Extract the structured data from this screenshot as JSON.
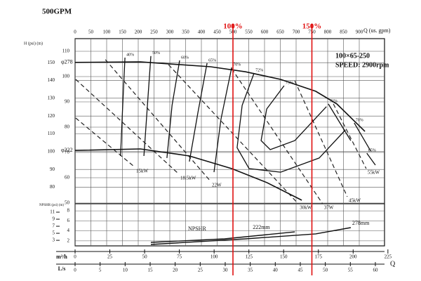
{
  "header": "500GPM",
  "chart_data": {
    "type": "pump-curve",
    "model": "100×65-250",
    "speed": "SPEED: 2900rpm",
    "x_label": "Q (us. gpm)",
    "x_bottom_label": "Q",
    "xlim": [
      0,
      1000
    ],
    "xticks": [
      0,
      50,
      100,
      150,
      200,
      250,
      300,
      350,
      400,
      450,
      500,
      550,
      600,
      650,
      700,
      750,
      800,
      850,
      900
    ],
    "x2_label": "m³/h",
    "x2lim": [
      0,
      227.1
    ],
    "x2ticks": [
      0,
      25,
      50,
      75,
      100,
      125,
      150,
      175,
      200,
      225
    ],
    "x3_label": "L/s",
    "x3lim": [
      0,
      63.09
    ],
    "x3ticks": [
      0,
      5,
      10,
      15,
      20,
      25,
      30,
      35,
      40,
      45,
      50,
      55,
      60
    ],
    "y_label": "H (psi) (m)",
    "ylim": [
      50,
      110
    ],
    "yticks": [
      50,
      60,
      70,
      80,
      90,
      100,
      110
    ],
    "y2lim": [
      71.1,
      156.4
    ],
    "y2ticks": [
      80,
      90,
      100,
      110,
      120,
      130,
      140,
      150
    ],
    "npsh_label": "NPSHR (psi) (m)",
    "npsh_ylim": [
      1,
      9
    ],
    "npsh_yticks": [
      2,
      4,
      6,
      8
    ],
    "npsh_psi_lim": [
      1.422,
      12.8
    ],
    "npsh_psi_ticks": [
      3,
      5,
      7,
      9,
      11
    ],
    "grid": true,
    "markers": [
      {
        "label": "100%",
        "x": 500,
        "color": "#e01010"
      },
      {
        "label": "150%",
        "x": 750,
        "color": "#e01010"
      }
    ],
    "head_curves": [
      {
        "name": "φ278",
        "x": [
          0,
          207,
          429,
          540,
          651,
          762,
          829,
          918
        ],
        "y": [
          105.6,
          105.8,
          103.9,
          101.9,
          98.9,
          94.2,
          89.2,
          78.3
        ]
      },
      {
        "name": "φ222",
        "x": [
          0,
          207,
          362,
          496,
          607,
          718
        ],
        "y": [
          70.8,
          71.4,
          68.6,
          63.6,
          58.1,
          51.1
        ]
      }
    ],
    "efficiency_curves": [
      {
        "name": "40%",
        "x": [
          158,
          151,
          144
        ],
        "y": [
          107.5,
          88.6,
          68.6
        ]
      },
      {
        "name": "50%",
        "x": [
          240,
          229,
          218
        ],
        "y": [
          108.1,
          88.6,
          68.6
        ]
      },
      {
        "name": "60%",
        "x": [
          331,
          307,
          291
        ],
        "y": [
          106.4,
          88.6,
          67.8
        ]
      },
      {
        "name": "65%",
        "x": [
          418,
          389,
          362
        ],
        "y": [
          105.3,
          85.8,
          66.4
        ]
      },
      {
        "name": "70%",
        "x": [
          496,
          462,
          440
        ],
        "y": [
          103.6,
          83.1,
          62.2
        ]
      },
      {
        "name": "72%",
        "x": [
          567,
          529,
          513,
          551,
          651,
          773,
          856
        ],
        "y": [
          101.4,
          88.6,
          71.9,
          63.6,
          62.2,
          67.8,
          78.9
        ]
      },
      {
        "name": "73%",
        "x": [
          662,
          607,
          589,
          618,
          696,
          796
        ],
        "y": [
          96.4,
          87.2,
          74.7,
          71.1,
          74.7,
          88.1
        ]
      },
      {
        "name": "72%",
        "x": [
          802,
          873
        ],
        "y": [
          89.2,
          74.7
        ]
      },
      {
        "name": "70%",
        "x": [
          884,
          936
        ],
        "y": [
          81.7,
          70.6
        ]
      },
      {
        "name": "65%",
        "x": [
          924,
          951
        ],
        "y": [
          69.7,
          65.0
        ]
      }
    ],
    "power_curves": [
      {
        "name": "15kW",
        "x": [
          2,
          189
        ],
        "y": [
          83.6,
          64.2
        ]
      },
      {
        "name": "18.5kW",
        "x": [
          2,
          329
        ],
        "y": [
          98.9,
          61.4
        ]
      },
      {
        "name": "22W",
        "x": [
          96,
          429
        ],
        "y": [
          106.7,
          58.6
        ]
      },
      {
        "name": "30kW",
        "x": [
          296,
          707
        ],
        "y": [
          104.7,
          49.7
        ]
      },
      {
        "name": "37W",
        "x": [
          496,
          784
        ],
        "y": [
          103.1,
          49.7
        ]
      },
      {
        "name": "45kW",
        "x": [
          696,
          862
        ],
        "y": [
          98.3,
          52.5
        ]
      },
      {
        "name": "55kW",
        "x": [
          818,
          922
        ],
        "y": [
          89.2,
          63.6
        ]
      }
    ],
    "npsh_curves_label": "NPSHR",
    "npsh_curves": [
      {
        "name": "222mm",
        "x": [
          240,
          473,
          696
        ],
        "y": [
          1.7,
          2.4,
          3.8
        ]
      },
      {
        "name": "278mm",
        "x": [
          240,
          540,
          762,
          873
        ],
        "y": [
          1.28,
          2.4,
          3.4,
          4.65
        ]
      }
    ]
  }
}
